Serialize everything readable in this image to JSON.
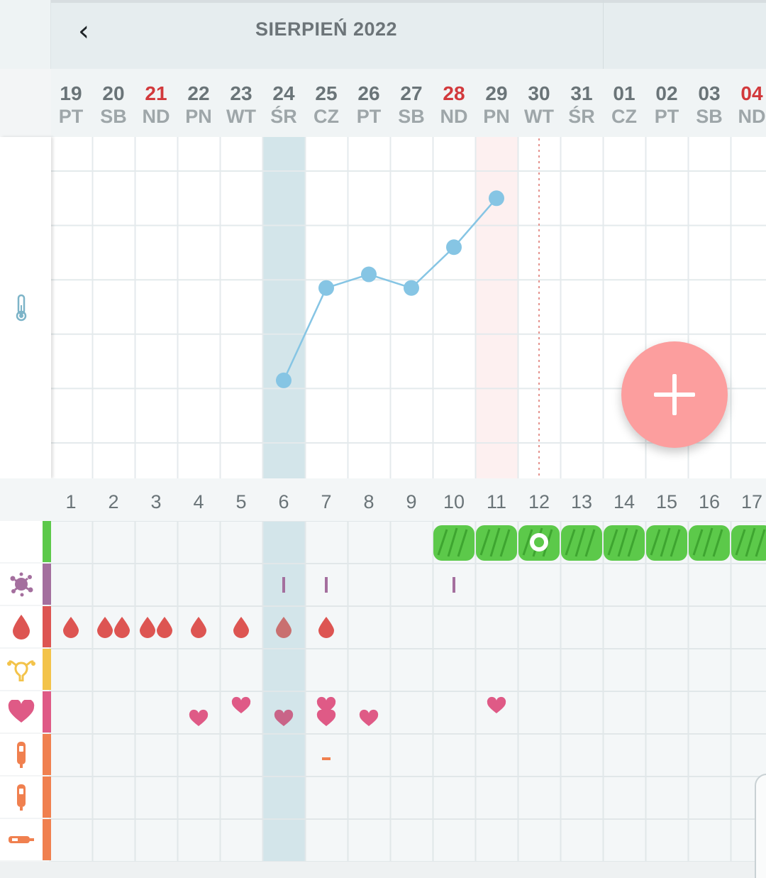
{
  "header": {
    "back_icon": "chevron-left-icon",
    "month_title": "SIERPIEŃ 2022"
  },
  "days": [
    {
      "num": "19",
      "name": "PT",
      "sunday": false
    },
    {
      "num": "20",
      "name": "SB",
      "sunday": false
    },
    {
      "num": "21",
      "name": "ND",
      "sunday": true
    },
    {
      "num": "22",
      "name": "PN",
      "sunday": false
    },
    {
      "num": "23",
      "name": "WT",
      "sunday": false
    },
    {
      "num": "24",
      "name": "ŚR",
      "sunday": false
    },
    {
      "num": "25",
      "name": "CZ",
      "sunday": false
    },
    {
      "num": "26",
      "name": "PT",
      "sunday": false
    },
    {
      "num": "27",
      "name": "SB",
      "sunday": false
    },
    {
      "num": "28",
      "name": "ND",
      "sunday": true
    },
    {
      "num": "29",
      "name": "PN",
      "sunday": false
    },
    {
      "num": "30",
      "name": "WT",
      "sunday": false
    },
    {
      "num": "31",
      "name": "ŚR",
      "sunday": false
    },
    {
      "num": "01",
      "name": "CZ",
      "sunday": false
    },
    {
      "num": "02",
      "name": "PT",
      "sunday": false
    },
    {
      "num": "03",
      "name": "SB",
      "sunday": false
    },
    {
      "num": "04",
      "name": "ND",
      "sunday": true
    }
  ],
  "cycle_days": [
    "1",
    "2",
    "3",
    "4",
    "5",
    "6",
    "7",
    "8",
    "9",
    "10",
    "11",
    "12",
    "13",
    "14",
    "15",
    "16",
    "17"
  ],
  "highlight": {
    "selected_cycle_day": 6,
    "today_cycle_day": 11,
    "dotted_line_cycle_day": 12
  },
  "chart_data": {
    "type": "line",
    "x": [
      6,
      7,
      8,
      9,
      10,
      11
    ],
    "y": [
      1.15,
      2.85,
      3.1,
      2.85,
      3.6,
      4.5
    ],
    "ylim": [
      0,
      5
    ],
    "grid": true,
    "color": "#86c5e4"
  },
  "fab": {
    "icon": "plus-icon",
    "color": "#fc9e9e"
  },
  "categories": [
    {
      "key": "fertile",
      "icon": "fertile-window-icon",
      "color": "#5cc94a"
    },
    {
      "key": "mucus",
      "icon": "splat-icon",
      "color": "#a46f9e"
    },
    {
      "key": "bleeding",
      "icon": "blood-drop-icon",
      "color": "#dd5552"
    },
    {
      "key": "cervix",
      "icon": "uterus-icon",
      "color": "#f3c34a"
    },
    {
      "key": "sex",
      "icon": "heart-icon",
      "color": "#df5a86"
    },
    {
      "key": "test1",
      "icon": "test-stick-icon",
      "color": "#f0804f"
    },
    {
      "key": "test2",
      "icon": "test-stick-icon",
      "color": "#f0804f"
    },
    {
      "key": "test3",
      "icon": "test-strip-icon",
      "color": "#f0804f"
    }
  ],
  "entries": {
    "fertile_days": [
      10,
      11,
      12,
      13,
      14,
      15,
      16,
      17
    ],
    "ovulation_day": 12,
    "mucus_days": [
      6,
      7,
      10
    ],
    "bleeding": [
      {
        "day": 1,
        "drops": 1
      },
      {
        "day": 2,
        "drops": 2
      },
      {
        "day": 3,
        "drops": 2
      },
      {
        "day": 4,
        "drops": 1
      },
      {
        "day": 5,
        "drops": 1
      },
      {
        "day": 6,
        "drops": 1
      },
      {
        "day": 7,
        "drops": 1
      }
    ],
    "sex": [
      {
        "day": 4,
        "hearts": 1
      },
      {
        "day": 5,
        "hearts": 1
      },
      {
        "day": 6,
        "hearts": 1
      },
      {
        "day": 7,
        "hearts": 2
      },
      {
        "day": 8,
        "hearts": 1
      },
      {
        "day": 11,
        "hearts": 1
      }
    ],
    "test1": [
      {
        "day": 7,
        "value": "-"
      }
    ]
  }
}
